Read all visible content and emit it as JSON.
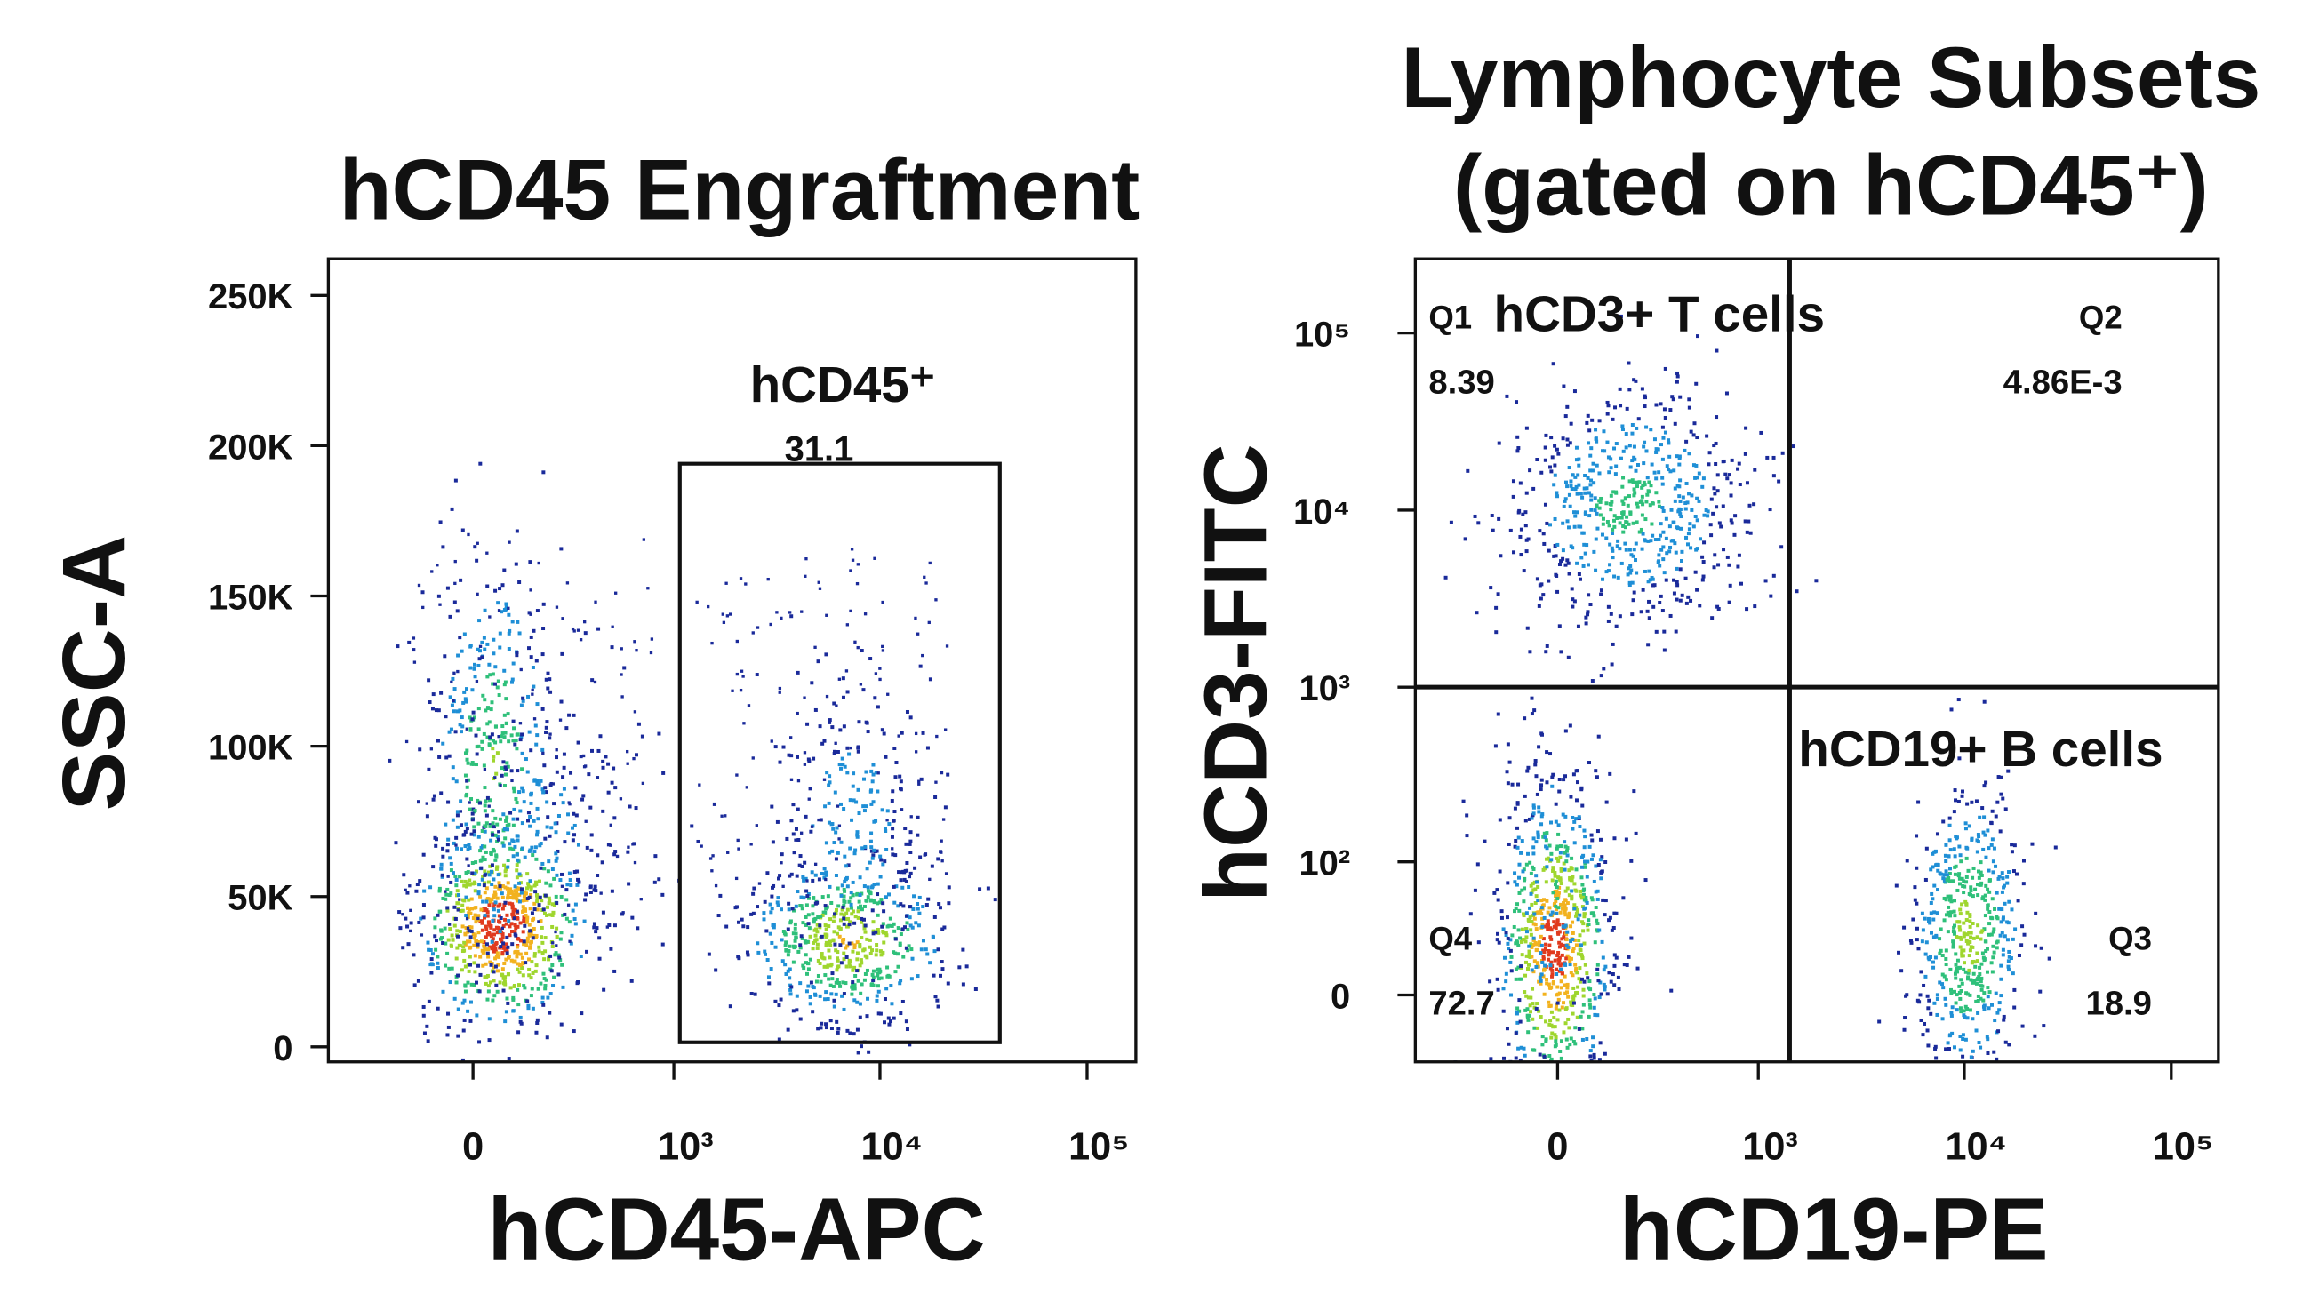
{
  "chart_data": [
    {
      "type": "gate-dot-plot",
      "title": "hCD45 Engraftment",
      "xlabel": "hCD45-APC",
      "ylabel": "SSC-A",
      "xscale": "biexponential",
      "yscale": "linear",
      "xlim": [
        -520,
        172000
      ],
      "ylim": [
        -5000,
        262144
      ],
      "xticks": [
        0,
        {
          "value": 1000,
          "label": "10³"
        },
        {
          "value": 10000,
          "label": "10⁴"
        },
        {
          "value": 100000,
          "label": "10⁵"
        }
      ],
      "yticks": [
        {
          "value": 0,
          "label": "0"
        },
        {
          "value": 50000,
          "label": "50K"
        },
        {
          "value": 100000,
          "label": "100K"
        },
        {
          "value": 150000,
          "label": "150K"
        },
        {
          "value": 200000,
          "label": "200K"
        },
        {
          "value": 250000,
          "label": "250K"
        }
      ],
      "gate": {
        "label": "hCD45⁺",
        "value": 31.1,
        "x": [
          1070,
          37900
        ],
        "y": [
          1500,
          194000
        ]
      }
    },
    {
      "type": "quadrant-dot-plot",
      "title": [
        "Lymphocyte Subsets",
        "(gated on hCD45⁺)"
      ],
      "xlabel": "hCD19-PE",
      "ylabel": "hCD3-FITC",
      "xscale": "biexponential",
      "yscale": "biexponential",
      "xlim": [
        -506,
        169000
      ],
      "ylim": [
        -36,
        262144
      ],
      "xticks": [
        0,
        {
          "value": 1000,
          "label": "10³"
        },
        {
          "value": 10000,
          "label": "10⁴"
        },
        {
          "value": 100000,
          "label": "10⁵"
        }
      ],
      "yticks": [
        0,
        {
          "value": 100,
          "label": "10²"
        },
        {
          "value": 1000,
          "label": "10³"
        },
        {
          "value": 10000,
          "label": "10⁴"
        },
        {
          "value": 100000,
          "label": "10⁵"
        }
      ],
      "divider": [
        1425,
        1000
      ],
      "quadrants": [
        {
          "name": "Q1",
          "value": 8.39
        },
        {
          "name": "Q2",
          "value": 0.00486,
          "value_label": "4.86E-3"
        },
        {
          "name": "Q3",
          "value": 18.9
        },
        {
          "name": "Q4",
          "value": 72.7
        }
      ],
      "annotations": [
        "hCD3+ T cells",
        "hCD19+ B cells"
      ]
    }
  ]
}
